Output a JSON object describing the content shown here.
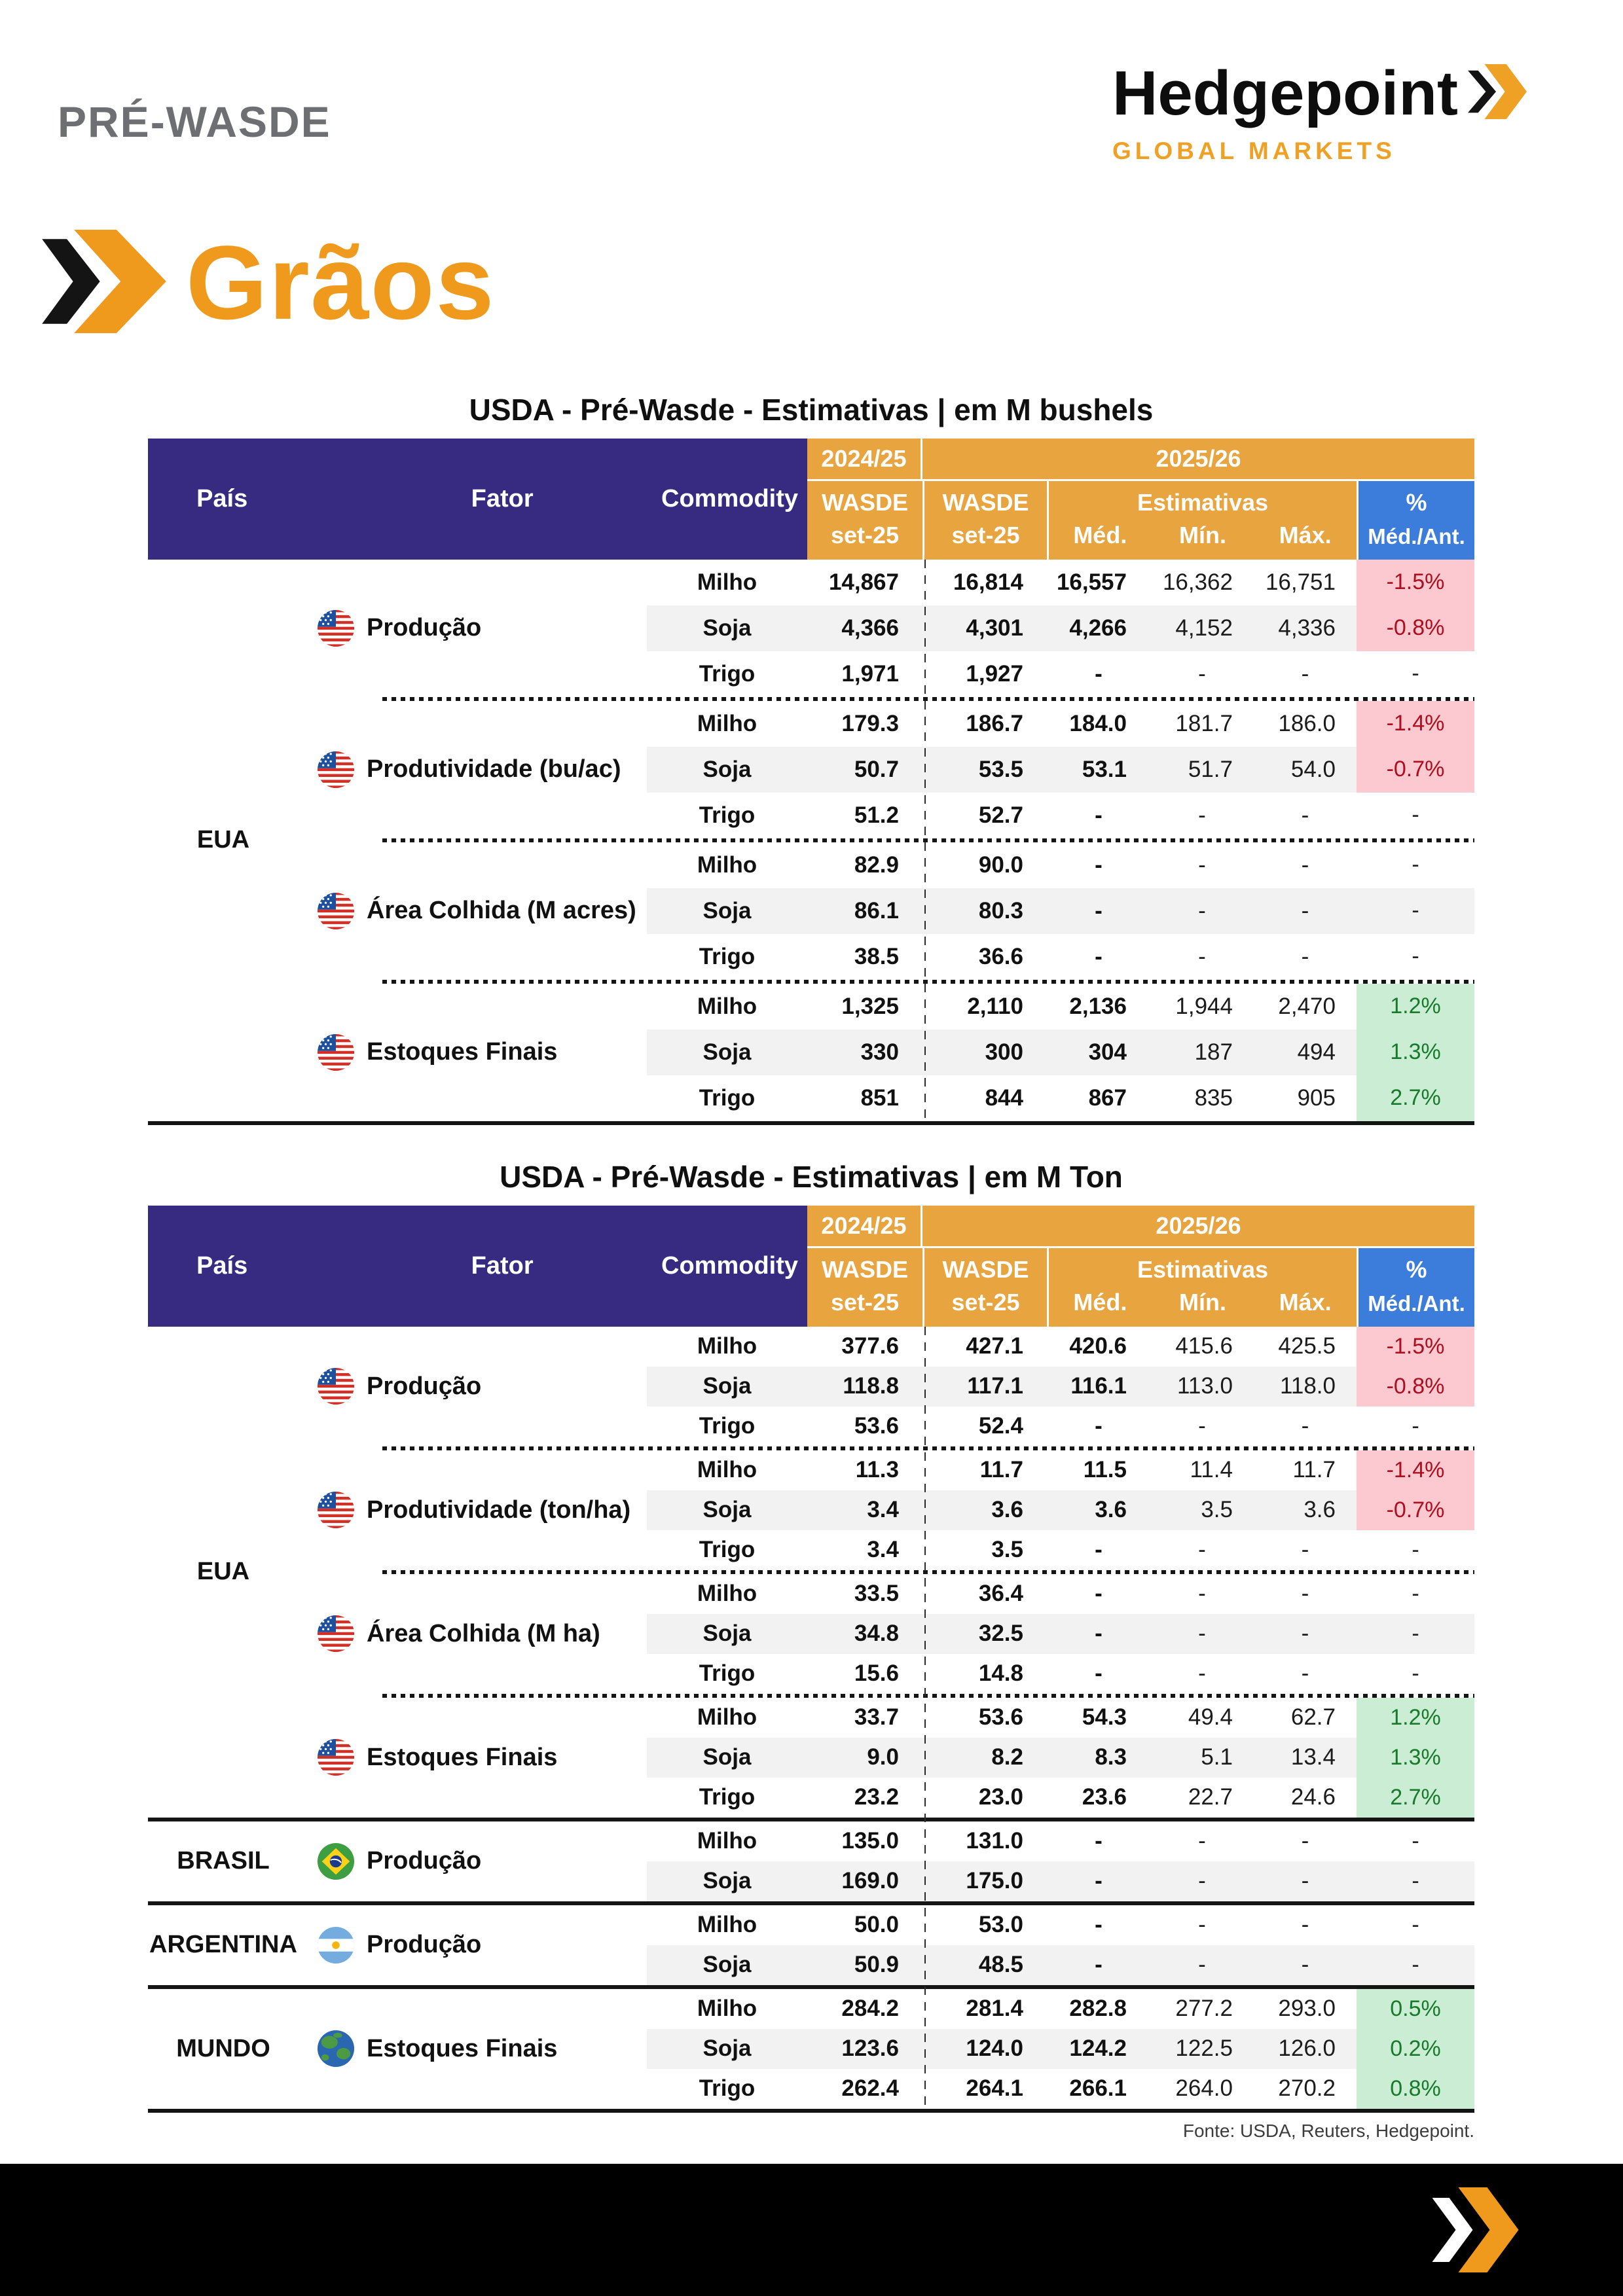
{
  "page": {
    "kicker": "PRÉ-WASDE",
    "logo": {
      "name": "Hedgepoint",
      "tagline": "GLOBAL MARKETS"
    },
    "section_title": "Grãos",
    "source": "Fonte: USDA, Reuters, Hedgepoint.",
    "icons": {
      "brand_chevron": "double-chevron",
      "graos_chevron": "double-chevron",
      "footer_chevron": "double-chevron",
      "flags": [
        "us-flag",
        "brazil-flag",
        "argentina-flag",
        "earth-globe"
      ]
    },
    "colors": {
      "purple": "#362A81",
      "orange_header": "#E8A43F",
      "blue_header": "#3C7DDB",
      "pink_bg": "#FBC9CF",
      "red_text": "#AF0E1F",
      "green_bg": "#CBEDD3",
      "green_text": "#177B2B",
      "row_gray": "#F2F2F2",
      "brand_orange": "#EF9A1D",
      "kicker_gray": "#6E6F73"
    }
  },
  "tables": [
    {
      "title": "USDA - Pré-Wasde - Estimativas | em M bushels",
      "header": {
        "pais": "País",
        "fator": "Fator",
        "commodity": "Commodity",
        "season_prev": "2024/25",
        "season_next": "2025/26",
        "wasde": "WASDE",
        "date": "set-25",
        "estimativas": "Estimativas",
        "med": "Méd.",
        "min": "Mín.",
        "max": "Máx.",
        "pct": "%",
        "pct_sub": "Méd./Ant."
      },
      "sections": [
        {
          "country": "EUA",
          "groups": [
            {
              "factor": "Produção",
              "flag": "us",
              "rows": [
                [
                  "Milho",
                  "14,867",
                  "16,814",
                  "16,557",
                  "16,362",
                  "16,751",
                  "-1.5%"
                ],
                [
                  "Soja",
                  "4,366",
                  "4,301",
                  "4,266",
                  "4,152",
                  "4,336",
                  "-0.8%"
                ],
                [
                  "Trigo",
                  "1,971",
                  "1,927",
                  "-",
                  "-",
                  "-",
                  "-"
                ]
              ]
            },
            {
              "factor": "Produtividade (bu/ac)",
              "flag": "us",
              "rows": [
                [
                  "Milho",
                  "179.3",
                  "186.7",
                  "184.0",
                  "181.7",
                  "186.0",
                  "-1.4%"
                ],
                [
                  "Soja",
                  "50.7",
                  "53.5",
                  "53.1",
                  "51.7",
                  "54.0",
                  "-0.7%"
                ],
                [
                  "Trigo",
                  "51.2",
                  "52.7",
                  "-",
                  "-",
                  "-",
                  "-"
                ]
              ]
            },
            {
              "factor": "Área Colhida (M acres)",
              "flag": "us",
              "rows": [
                [
                  "Milho",
                  "82.9",
                  "90.0",
                  "-",
                  "-",
                  "-",
                  "-"
                ],
                [
                  "Soja",
                  "86.1",
                  "80.3",
                  "-",
                  "-",
                  "-",
                  "-"
                ],
                [
                  "Trigo",
                  "38.5",
                  "36.6",
                  "-",
                  "-",
                  "-",
                  "-"
                ]
              ]
            },
            {
              "factor": "Estoques Finais",
              "flag": "us",
              "rows": [
                [
                  "Milho",
                  "1,325",
                  "2,110",
                  "2,136",
                  "1,944",
                  "2,470",
                  "1.2%"
                ],
                [
                  "Soja",
                  "330",
                  "300",
                  "304",
                  "187",
                  "494",
                  "1.3%"
                ],
                [
                  "Trigo",
                  "851",
                  "844",
                  "867",
                  "835",
                  "905",
                  "2.7%"
                ]
              ]
            }
          ]
        }
      ]
    },
    {
      "title": "USDA - Pré-Wasde - Estimativas | em M Ton",
      "header": {
        "pais": "País",
        "fator": "Fator",
        "commodity": "Commodity",
        "season_prev": "2024/25",
        "season_next": "2025/26",
        "wasde": "WASDE",
        "date": "set-25",
        "estimativas": "Estimativas",
        "med": "Méd.",
        "min": "Mín.",
        "max": "Máx.",
        "pct": "%",
        "pct_sub": "Méd./Ant."
      },
      "sections": [
        {
          "country": "EUA",
          "groups": [
            {
              "factor": "Produção",
              "flag": "us",
              "rows": [
                [
                  "Milho",
                  "377.6",
                  "427.1",
                  "420.6",
                  "415.6",
                  "425.5",
                  "-1.5%"
                ],
                [
                  "Soja",
                  "118.8",
                  "117.1",
                  "116.1",
                  "113.0",
                  "118.0",
                  "-0.8%"
                ],
                [
                  "Trigo",
                  "53.6",
                  "52.4",
                  "-",
                  "-",
                  "-",
                  "-"
                ]
              ]
            },
            {
              "factor": "Produtividade (ton/ha)",
              "flag": "us",
              "rows": [
                [
                  "Milho",
                  "11.3",
                  "11.7",
                  "11.5",
                  "11.4",
                  "11.7",
                  "-1.4%"
                ],
                [
                  "Soja",
                  "3.4",
                  "3.6",
                  "3.6",
                  "3.5",
                  "3.6",
                  "-0.7%"
                ],
                [
                  "Trigo",
                  "3.4",
                  "3.5",
                  "-",
                  "-",
                  "-",
                  "-"
                ]
              ]
            },
            {
              "factor": "Área Colhida (M ha)",
              "flag": "us",
              "rows": [
                [
                  "Milho",
                  "33.5",
                  "36.4",
                  "-",
                  "-",
                  "-",
                  "-"
                ],
                [
                  "Soja",
                  "34.8",
                  "32.5",
                  "-",
                  "-",
                  "-",
                  "-"
                ],
                [
                  "Trigo",
                  "15.6",
                  "14.8",
                  "-",
                  "-",
                  "-",
                  "-"
                ]
              ]
            },
            {
              "factor": "Estoques Finais",
              "flag": "us",
              "rows": [
                [
                  "Milho",
                  "33.7",
                  "53.6",
                  "54.3",
                  "49.4",
                  "62.7",
                  "1.2%"
                ],
                [
                  "Soja",
                  "9.0",
                  "8.2",
                  "8.3",
                  "5.1",
                  "13.4",
                  "1.3%"
                ],
                [
                  "Trigo",
                  "23.2",
                  "23.0",
                  "23.6",
                  "22.7",
                  "24.6",
                  "2.7%"
                ]
              ]
            }
          ]
        },
        {
          "country": "BRASIL",
          "groups": [
            {
              "factor": "Produção",
              "flag": "br",
              "rows": [
                [
                  "Milho",
                  "135.0",
                  "131.0",
                  "-",
                  "-",
                  "-",
                  "-"
                ],
                [
                  "Soja",
                  "169.0",
                  "175.0",
                  "-",
                  "-",
                  "-",
                  "-"
                ]
              ]
            }
          ]
        },
        {
          "country": "ARGENTINA",
          "groups": [
            {
              "factor": "Produção",
              "flag": "ar",
              "rows": [
                [
                  "Milho",
                  "50.0",
                  "53.0",
                  "-",
                  "-",
                  "-",
                  "-"
                ],
                [
                  "Soja",
                  "50.9",
                  "48.5",
                  "-",
                  "-",
                  "-",
                  "-"
                ]
              ]
            }
          ]
        },
        {
          "country": "MUNDO",
          "groups": [
            {
              "factor": "Estoques Finais",
              "flag": "earth",
              "rows": [
                [
                  "Milho",
                  "284.2",
                  "281.4",
                  "282.8",
                  "277.2",
                  "293.0",
                  "0.5%"
                ],
                [
                  "Soja",
                  "123.6",
                  "124.0",
                  "124.2",
                  "122.5",
                  "126.0",
                  "0.2%"
                ],
                [
                  "Trigo",
                  "262.4",
                  "264.1",
                  "266.1",
                  "264.0",
                  "270.2",
                  "0.8%"
                ]
              ]
            }
          ]
        }
      ]
    }
  ]
}
